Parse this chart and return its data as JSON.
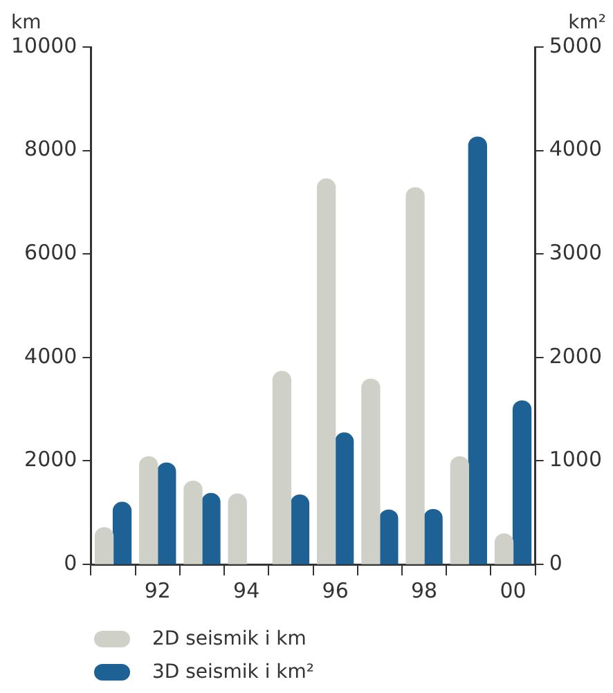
{
  "chart_data": {
    "type": "bar",
    "ylabel": "km",
    "y2label": "km²",
    "categories": [
      null,
      "92",
      null,
      "94",
      null,
      "96",
      null,
      "98",
      null,
      "00"
    ],
    "series": [
      {
        "name": "2D seismik i km",
        "color": "#cfd1c8",
        "values": [
          710,
          2080,
          1610,
          1360,
          3730,
          7450,
          3580,
          7280,
          2080,
          590
        ]
      },
      {
        "name": "3D seismik i km²",
        "color": "#1d6195",
        "axis": "y2",
        "values": [
          600,
          980,
          685,
          null,
          670,
          1270,
          525,
          530,
          4130,
          1580
        ]
      }
    ],
    "ylim": [
      0,
      10000
    ],
    "yticks": [
      0,
      2000,
      4000,
      6000,
      8000,
      10000
    ],
    "y2lim": [
      0,
      5000
    ],
    "y2ticks": [
      0,
      1000,
      2000,
      3000,
      4000,
      5000
    ],
    "grid": false,
    "legend": "bottom left"
  }
}
